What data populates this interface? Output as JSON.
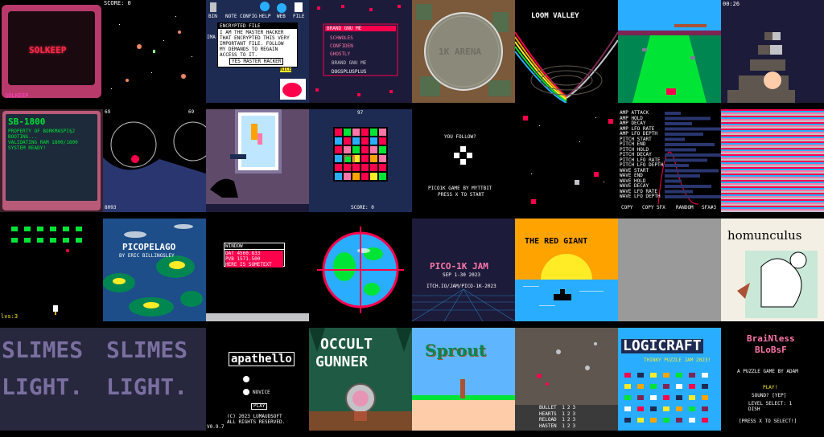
{
  "tiles": {
    "solkeep": {
      "title": "SOLKEEP",
      "footer": "SOLKEEP"
    },
    "asteroids": {
      "score": "SCORE: 0"
    },
    "desktop": {
      "icons": [
        "BIN",
        "NOTE",
        "CONFIG",
        "HELP",
        "WEB",
        "FILE"
      ],
      "window_title": "ENCRYPTED FILE",
      "body": [
        "I AM THE MASTER HACKER",
        "THAT ENCRYPTED THIS VERY",
        "IMPORTANT FILE. FOLLOW",
        "MY DEMANDS TO REGAIN",
        "ACCESS TO IT."
      ],
      "button": "YES MASTER HACKER",
      "side": "IMA",
      "nice": "NICE"
    },
    "brand": {
      "title": "BRAND GNU ME",
      "menu": [
        "SCHWOLES",
        "CONFIDEN",
        "GHOSTLY"
      ],
      "sub": "BRAND GNU ME",
      "author": "DOGSPLUSPLUS"
    },
    "arena": {
      "title": "1K ARENA"
    },
    "loom": {
      "title": "LOOM VALLEY"
    },
    "timer": {
      "time": "00:26"
    },
    "sb1800": {
      "title": "SB-1800",
      "lines": [
        "PROPERTY OF BORKMASPI§2",
        "BOOTING...",
        "VALIDATING RAM 1800/1800",
        "",
        "SYSTEM READY!"
      ]
    },
    "circles": {
      "left": "69",
      "right": "69",
      "bottom": "8093"
    },
    "match3": {
      "top": "97",
      "score": "SCORE: 0"
    },
    "follow": {
      "question": "YOU FOLLOW?",
      "credit": "PICO1K GAME BY MYTTBIT",
      "start": "PRESS X TO START"
    },
    "synth": {
      "params": [
        "AMP ATTACK",
        "AMP HOLD",
        "AMP DECAY",
        "AMP LFO RATE",
        "AMP LFO DEPTH",
        "PITCH START",
        "PITCH END",
        "PITCH HOLD",
        "PITCH DECAY",
        "PITCH LFO RATE",
        "PITCH LFO DEPTH",
        "WAVE START",
        "WAVE END",
        "WAVE HOLD",
        "WAVE DECAY",
        "WAVE LFO RATE",
        "WAVE LFO DEPTH"
      ],
      "footer": [
        "COPY",
        "COPY SFX",
        "RANDOM",
        "SFX#3"
      ]
    },
    "invaders": {
      "lives": "lvs:3"
    },
    "picopelago": {
      "title": "PICOPELAGO",
      "author": "BY ERIC BILLINGSLEY"
    },
    "window": {
      "title": "WINDOW",
      "lines": [
        "DAT 4560.833",
        "PVB 1571.500",
        "HERE IS SOMETEXT"
      ]
    },
    "jam": {
      "title": "PICO-1K JAM",
      "date": "SEP 1-30 2023",
      "url": "ITCH.IO/JAM/PICO-1K-2023"
    },
    "redgiant": {
      "title": "THE RED GIANT"
    },
    "homunculus": {
      "title": "homunculus"
    },
    "slimes": {
      "words": [
        "SLIMES",
        "SLIMES",
        "LIGHT.",
        "LIGHT."
      ]
    },
    "apathello": {
      "title": "apathello",
      "option": "NOVICE",
      "play": "PLAY",
      "copyright": "(C) 2023 LUMAUDSOFT",
      "rights": "ALL RIGHTS RESERVED.",
      "version": "V0.9.7"
    },
    "occult": {
      "line1": "OCCULT",
      "line2": "GUNNER"
    },
    "sprout": {
      "title": "Sprout"
    },
    "topdown": {
      "stats": [
        {
          "label": "BULLET",
          "vals": [
            "1",
            "2",
            "3"
          ]
        },
        {
          "label": "HEARTS",
          "vals": [
            "1",
            "2",
            "3"
          ]
        },
        {
          "label": "RELOAD",
          "vals": [
            "1",
            "2",
            "3"
          ]
        },
        {
          "label": "HASTEN",
          "vals": [
            "1",
            "2",
            "3"
          ]
        }
      ]
    },
    "logicraft": {
      "title": "LOGICRAFT",
      "sub": "THINKY PUZZLE JAM 2023!"
    },
    "brainless": {
      "line1": "BraiNless",
      "line2": "BLoBsF",
      "sub": "A PUZZLE GAME BY ADAM",
      "play": "PLAY!",
      "sound": "SOUND? [YEP]",
      "level": "LEVEL SELECT: 1",
      "dish": "DISH",
      "start": "[PRESS X TO SELECT!]"
    }
  }
}
